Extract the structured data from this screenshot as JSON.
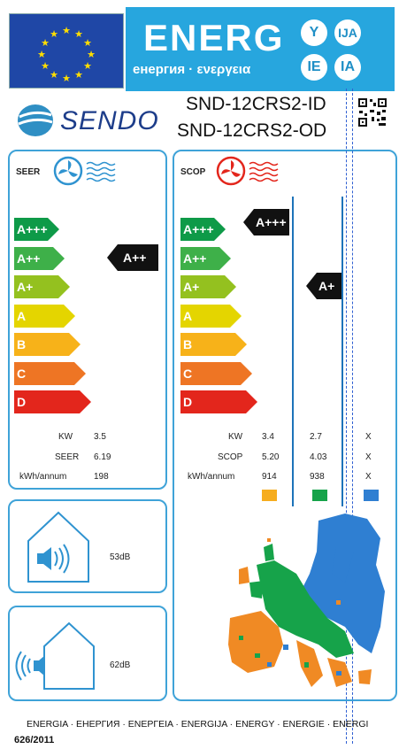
{
  "header": {
    "energ_word": "ENERG",
    "energ_sub": "енергия · ενεργεια",
    "lang_letters": [
      "Y",
      "IJA",
      "IE",
      "IA"
    ]
  },
  "brand": {
    "name": "SENDO"
  },
  "models": {
    "indoor": "SND-12CRS2-ID",
    "outdoor": "SND-12CRS2-OD"
  },
  "cooling": {
    "title": "SEER",
    "classes": [
      "A+++",
      "A++",
      "A+",
      "A",
      "B",
      "C",
      "D"
    ],
    "rating": "A++",
    "rows": [
      {
        "label": "KW",
        "value": "3.5"
      },
      {
        "label": "SEER",
        "value": "6.19"
      },
      {
        "label": "kWh/annum",
        "value": "198"
      }
    ]
  },
  "heating": {
    "title": "SCOP",
    "classes": [
      "A+++",
      "A++",
      "A+",
      "A",
      "B",
      "C",
      "D"
    ],
    "rating_warm": "A+++",
    "rating_average": "A+",
    "rows": [
      {
        "label": "KW",
        "warm": "3.4",
        "average": "2.7",
        "cold": "X"
      },
      {
        "label": "SCOP",
        "warm": "5.20",
        "average": "4.03",
        "cold": "X"
      },
      {
        "label": "kWh/annum",
        "warm": "914",
        "average": "938",
        "cold": "X"
      }
    ]
  },
  "noise": {
    "indoor": "53dB",
    "outdoor": "62dB"
  },
  "colors": {
    "A+++": "#0e9a48",
    "A++": "#3eb049",
    "A+": "#94c11f",
    "A": "#e4d500",
    "B": "#f7b219",
    "C": "#ee7524",
    "D": "#e3261c",
    "zone_warm": "#f6ad1f",
    "zone_average": "#16a34a",
    "zone_cold": "#2f7fd2"
  },
  "footer": {
    "languages": "ENERGIA · ЕНЕРГИЯ · ΕΝΕΡΓΕΙΑ · ENERGIJA · ENERGY · ENERGIE · ENERGI",
    "regulation": "626/2011"
  }
}
